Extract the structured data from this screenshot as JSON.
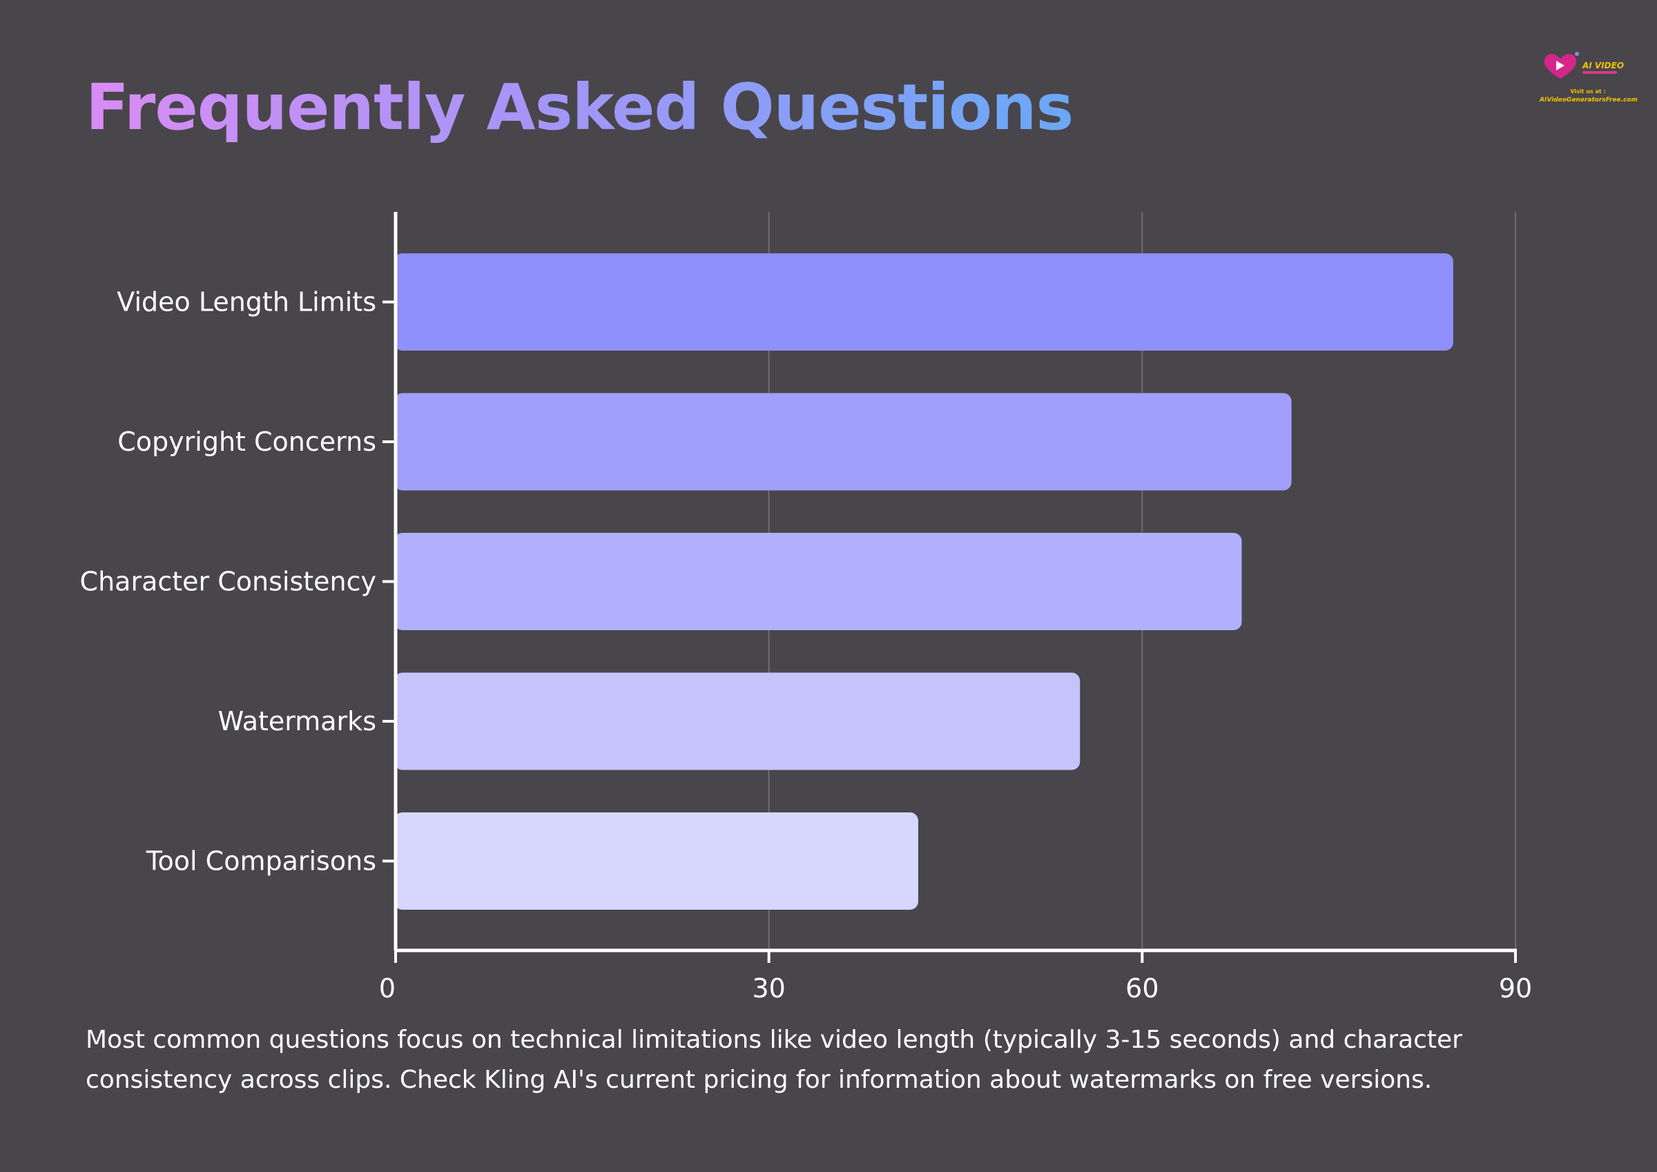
{
  "page": {
    "background": "#48464a"
  },
  "logo": {
    "brand": "AI VIDEO",
    "visit": "Visit us at :",
    "site": "AIVideoGeneratorsFree.com"
  },
  "chart_data": {
    "type": "bar",
    "orientation": "horizontal",
    "title": "Frequently Asked Questions",
    "categories": [
      "Video Length Limits",
      "Copyright Concerns",
      "Character Consistency",
      "Watermarks",
      "Tool Comparisons"
    ],
    "values": [
      85,
      72,
      68,
      55,
      42
    ],
    "colors": [
      "#8f8ffd",
      "#a09ffc",
      "#b1b0fc",
      "#c4c3fc",
      "#d7d6fe"
    ],
    "xlabel": "",
    "ylabel": "",
    "xlim": [
      0,
      90
    ],
    "xticks": [
      0,
      30,
      60,
      90
    ],
    "grid": true,
    "legend": "none"
  },
  "caption": "Most common questions focus on technical limitations like video length (typically 3-15 seconds) and character consistency across clips. Check Kling AI's current pricing for information about watermarks on free versions."
}
